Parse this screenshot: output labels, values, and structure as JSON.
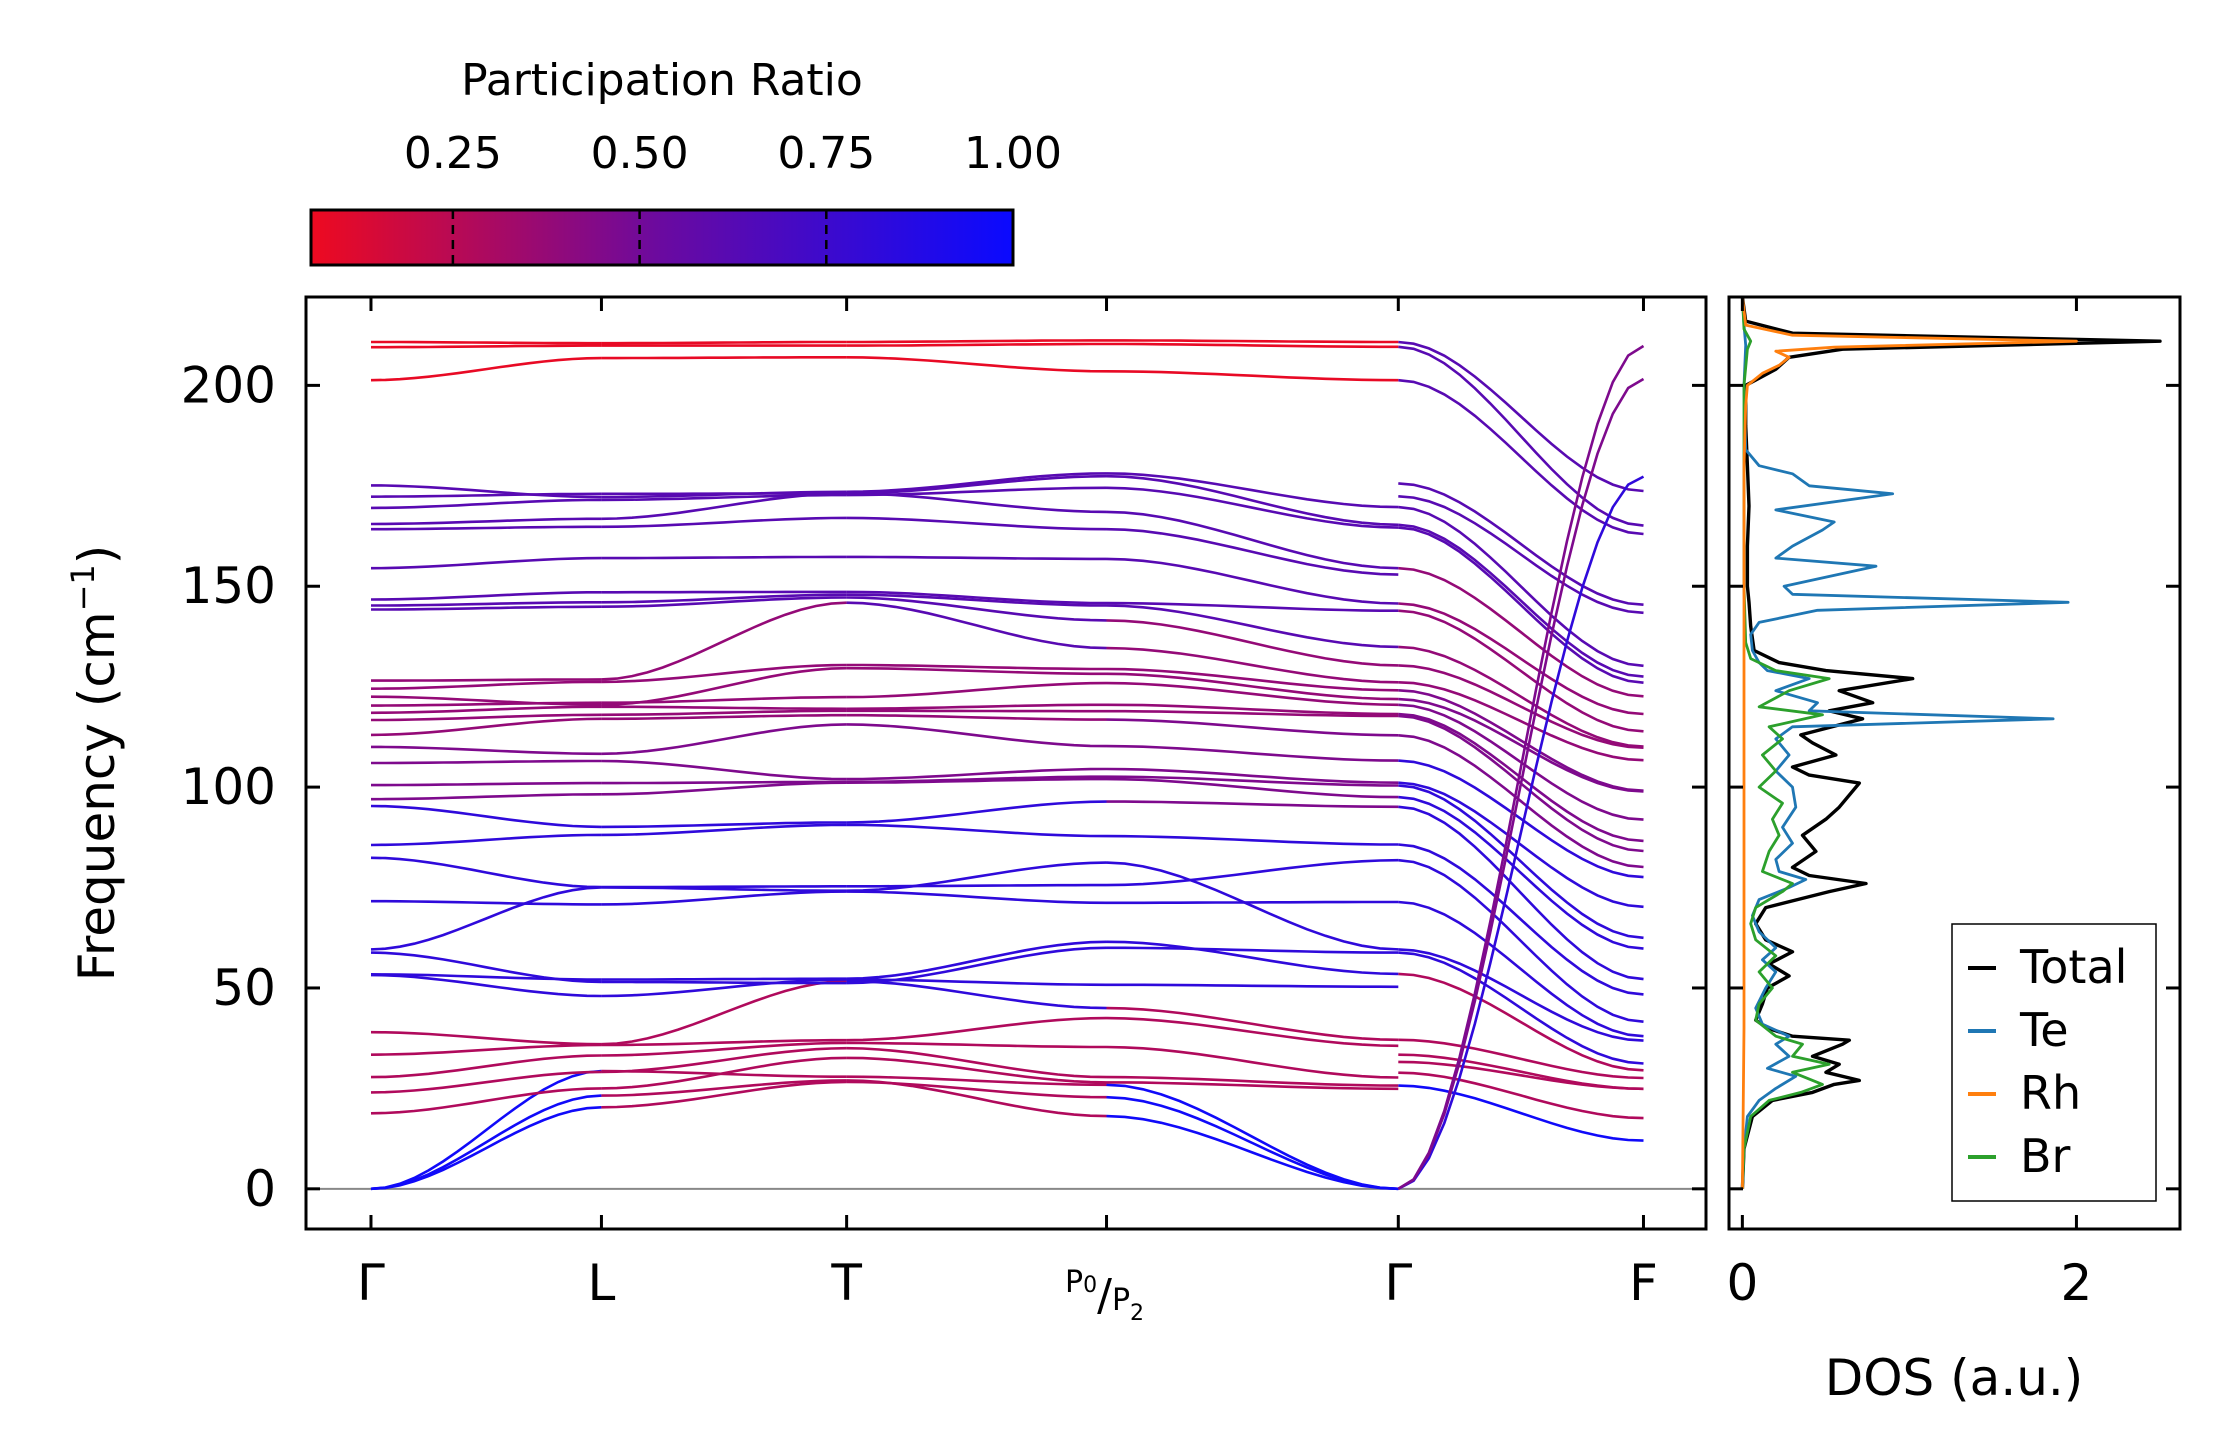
{
  "colorbar": {
    "title": "Participation Ratio",
    "ticks": [
      "0.25",
      "0.50",
      "0.75",
      "1.00"
    ],
    "tick_values": [
      0.25,
      0.5,
      0.75,
      1.0
    ],
    "range": [
      0.06,
      1.0
    ],
    "color_low": "#ee0a20",
    "color_mid": "#6a0aa0",
    "color_high": "#0a0aff"
  },
  "chart_data": [
    {
      "type": "line",
      "name": "phonon-band-structure",
      "ylabel": "Frequency (cm",
      "ylabel_sup": "−1",
      "ylabel_end": ")",
      "ylim": [
        -10,
        222
      ],
      "yticks": [
        0,
        50,
        100,
        150,
        200
      ],
      "ytick_labels": [
        "0",
        "50",
        "100",
        "150",
        "200"
      ],
      "xlim": [
        -0.265,
        5.445
      ],
      "path_points": [
        0,
        0.94,
        1.94,
        3.0,
        4.19,
        5.19
      ],
      "path_labels": [
        "Γ",
        "L",
        "T",
        "P",
        "Γ",
        "F"
      ],
      "path_label_special": {
        "main": "P",
        "sub1": "0",
        "sep": "/",
        "main2": "P",
        "sub2": "2"
      },
      "seg_starts": [
        [
          0,
          0,
          0,
          18.8,
          24,
          27.8,
          33.4,
          39,
          53.2,
          53.4,
          58.8,
          59.6,
          71.6,
          82.4,
          85.6,
          95.3,
          97,
          100.5,
          106,
          110,
          113,
          116.7,
          118.5,
          120.3,
          122.5,
          124.5,
          126.5,
          144.2,
          145.2,
          146.7,
          154.5,
          164.2,
          165.5,
          169.5,
          172.3,
          175.1,
          201.3,
          209.5,
          210.8
        ],
        [
          23.2,
          20.3,
          29.3,
          25,
          29.1,
          33.2,
          35.8,
          36,
          48,
          52.1,
          51.5,
          75,
          70.8,
          75.1,
          88.1,
          90.1,
          98.2,
          101,
          106.5,
          108.3,
          117,
          118,
          120,
          121,
          120.5,
          126.2,
          126.8,
          144.9,
          146,
          148.5,
          157,
          164.8,
          166.8,
          171.5,
          173,
          172.2,
          206.8,
          209.9,
          210.5
        ],
        [
          27,
          26.6,
          27.9,
          32.6,
          35,
          36.3,
          37,
          51.7,
          52.1,
          52.3,
          51.2,
          74.2,
          74,
          75.3,
          90.6,
          91.2,
          101.1,
          101.3,
          102,
          115.6,
          117.9,
          119,
          119.5,
          122.4,
          129.6,
          130.4,
          145.9,
          147.2,
          147.9,
          148.6,
          157.3,
          167,
          173.1,
          172.7,
          173.1,
          173.5,
          207,
          209.9,
          210.8
        ],
        [
          18.1,
          22.8,
          25.9,
          26.5,
          27.8,
          35.3,
          42.5,
          45,
          50.8,
          61.5,
          60,
          81.2,
          71.2,
          75.6,
          87.8,
          96.4,
          102,
          102.6,
          104.5,
          110.2,
          116.8,
          118.9,
          120.5,
          125.9,
          128.2,
          129.4,
          134.6,
          141.5,
          145.2,
          145.8,
          156.8,
          164.2,
          168.5,
          174.5,
          177.4,
          178.1,
          203.5,
          210.3,
          211.2
        ],
        [
          0,
          0,
          0,
          24.9,
          25.7,
          27.7,
          35.6,
          37.1,
          50.3,
          53.5,
          58.8,
          59.6,
          71.4,
          81.8,
          85.7,
          95.1,
          97.5,
          100.4,
          101.1,
          106.6,
          112.9,
          117.7,
          118.2,
          120.5,
          121.9,
          124.1,
          126.1,
          130.3,
          134.9,
          143.9,
          145.7,
          152.9,
          154.5,
          164.6,
          165.3,
          169.7,
          201.3,
          209.6,
          210.8
        ],
        [
          12,
          17.6,
          24.9,
          24.9,
          27.6,
          29.5,
          31.2,
          36.9,
          38,
          41.6,
          48.4,
          52.2,
          59.8,
          62.5,
          70.2,
          77.6,
          80.1,
          84.1,
          86.6,
          91.9,
          98.9,
          99.1,
          106.7,
          109.8,
          110.1,
          113.9,
          118.2,
          122.6,
          126,
          127.5,
          130.2,
          143.4,
          145.4,
          163,
          165.1,
          173.7,
          177.3,
          201.6,
          209.8
        ]
      ],
      "breaks": [
        {
          "at": 4.19,
          "right": [
            25.7,
            28.9,
            31.6,
            33.4,
            37.1,
            53.5,
            58.8,
            59.6,
            71.4,
            81.8,
            85.7,
            95.1,
            97.5,
            100.4,
            101.1,
            106.6,
            112.9,
            117.7,
            118.2,
            120.5,
            121.9,
            124.1,
            126.1,
            130.3,
            134.9,
            143.9,
            145.7,
            154.5,
            164.6,
            165.3,
            169.7,
            172.4,
            175.6,
            201.3,
            209.6,
            210.8,
            0,
            0,
            0
          ]
        }
      ]
    },
    {
      "type": "line",
      "name": "density-of-states",
      "xlabel": "DOS (a.u.)",
      "xlim": [
        -0.08,
        2.62
      ],
      "ylim": [
        -10,
        222
      ],
      "xticks": [
        0,
        2
      ],
      "xtick_labels": [
        "0",
        "2"
      ],
      "legend_position": "lower right",
      "series": [
        {
          "name": "Total",
          "color": "#000000",
          "points": [
            [
              0,
              0
            ],
            [
              0.01,
              10
            ],
            [
              0.06,
              18
            ],
            [
              0.18,
              22
            ],
            [
              0.42,
              24
            ],
            [
              0.55,
              26
            ],
            [
              0.7,
              27
            ],
            [
              0.5,
              29
            ],
            [
              0.58,
              31
            ],
            [
              0.42,
              33
            ],
            [
              0.6,
              36
            ],
            [
              0.64,
              37
            ],
            [
              0.3,
              38
            ],
            [
              0.15,
              40
            ],
            [
              0.08,
              42
            ],
            [
              0.12,
              46
            ],
            [
              0.15,
              50
            ],
            [
              0.28,
              53
            ],
            [
              0.16,
              56
            ],
            [
              0.3,
              59
            ],
            [
              0.14,
              62
            ],
            [
              0.08,
              66
            ],
            [
              0.14,
              70
            ],
            [
              0.52,
              74
            ],
            [
              0.74,
              76
            ],
            [
              0.4,
              78
            ],
            [
              0.3,
              80
            ],
            [
              0.44,
              84
            ],
            [
              0.36,
              88
            ],
            [
              0.5,
              92
            ],
            [
              0.58,
              95
            ],
            [
              0.7,
              101
            ],
            [
              0.4,
              103
            ],
            [
              0.3,
              105
            ],
            [
              0.56,
              108
            ],
            [
              0.42,
              111
            ],
            [
              0.35,
              113
            ],
            [
              0.72,
              117
            ],
            [
              0.52,
              119
            ],
            [
              0.78,
              121
            ],
            [
              0.58,
              124
            ],
            [
              1.02,
              127
            ],
            [
              0.5,
              129
            ],
            [
              0.22,
              131
            ],
            [
              0.07,
              134
            ],
            [
              0.05,
              140
            ],
            [
              0.04,
              146
            ],
            [
              0.03,
              150
            ],
            [
              0.03,
              160
            ],
            [
              0.04,
              170
            ],
            [
              0.03,
              180
            ],
            [
              0.02,
              190
            ],
            [
              0.02,
              200
            ],
            [
              0.2,
              204
            ],
            [
              0.28,
              207
            ],
            [
              0.6,
              209
            ],
            [
              2.5,
              211
            ],
            [
              0.3,
              213
            ],
            [
              0.02,
              216
            ],
            [
              0,
              222
            ]
          ]
        },
        {
          "name": "Te",
          "color": "#1f77b4",
          "points": [
            [
              0,
              0
            ],
            [
              0.01,
              10
            ],
            [
              0.03,
              18
            ],
            [
              0.1,
              22
            ],
            [
              0.2,
              25
            ],
            [
              0.32,
              28
            ],
            [
              0.15,
              30
            ],
            [
              0.28,
              33
            ],
            [
              0.2,
              36
            ],
            [
              0.28,
              38
            ],
            [
              0.12,
              41
            ],
            [
              0.08,
              45
            ],
            [
              0.14,
              50
            ],
            [
              0.2,
              54
            ],
            [
              0.12,
              57
            ],
            [
              0.2,
              60
            ],
            [
              0.1,
              64
            ],
            [
              0.06,
              68
            ],
            [
              0.1,
              72
            ],
            [
              0.28,
              75
            ],
            [
              0.38,
              77
            ],
            [
              0.22,
              79
            ],
            [
              0.2,
              82
            ],
            [
              0.3,
              86
            ],
            [
              0.24,
              90
            ],
            [
              0.32,
              95
            ],
            [
              0.3,
              100
            ],
            [
              0.2,
              104
            ],
            [
              0.28,
              108
            ],
            [
              0.2,
              112
            ],
            [
              0.3,
              115
            ],
            [
              1.86,
              117
            ],
            [
              0.4,
              119
            ],
            [
              0.45,
              121
            ],
            [
              0.2,
              124
            ],
            [
              0.4,
              127
            ],
            [
              0.15,
              129
            ],
            [
              0.1,
              131
            ],
            [
              0.06,
              134
            ],
            [
              0.05,
              138
            ],
            [
              0.1,
              141
            ],
            [
              0.45,
              144
            ],
            [
              1.95,
              146
            ],
            [
              0.3,
              148
            ],
            [
              0.25,
              150
            ],
            [
              0.8,
              155
            ],
            [
              0.2,
              157
            ],
            [
              0.3,
              160
            ],
            [
              0.48,
              164
            ],
            [
              0.55,
              166
            ],
            [
              0.2,
              169
            ],
            [
              0.9,
              173
            ],
            [
              0.4,
              175
            ],
            [
              0.3,
              178
            ],
            [
              0.1,
              180
            ],
            [
              0.02,
              184
            ],
            [
              0.01,
              200
            ],
            [
              0.02,
              210
            ],
            [
              0.01,
              215
            ],
            [
              0,
              222
            ]
          ]
        },
        {
          "name": "Rh",
          "color": "#ff7f0e",
          "points": [
            [
              0,
              0
            ],
            [
              0.005,
              20
            ],
            [
              0.01,
              40
            ],
            [
              0.01,
              60
            ],
            [
              0.01,
              80
            ],
            [
              0.01,
              100
            ],
            [
              0.01,
              120
            ],
            [
              0.01,
              140
            ],
            [
              0.01,
              160
            ],
            [
              0.01,
              180
            ],
            [
              0.02,
              195
            ],
            [
              0.03,
              200
            ],
            [
              0.12,
              203
            ],
            [
              0.22,
              205
            ],
            [
              0.28,
              207
            ],
            [
              0.2,
              208.5
            ],
            [
              0.55,
              209.5
            ],
            [
              2.0,
              211
            ],
            [
              0.3,
              212.5
            ],
            [
              0.02,
              215
            ],
            [
              0,
              222
            ]
          ]
        },
        {
          "name": "Br",
          "color": "#2ca02c",
          "points": [
            [
              0,
              0
            ],
            [
              0.01,
              10
            ],
            [
              0.05,
              18
            ],
            [
              0.16,
              22
            ],
            [
              0.35,
              24
            ],
            [
              0.48,
              26
            ],
            [
              0.3,
              29
            ],
            [
              0.52,
              31
            ],
            [
              0.3,
              33
            ],
            [
              0.36,
              36
            ],
            [
              0.2,
              38
            ],
            [
              0.08,
              42
            ],
            [
              0.1,
              46
            ],
            [
              0.18,
              50
            ],
            [
              0.1,
              54
            ],
            [
              0.2,
              58
            ],
            [
              0.08,
              62
            ],
            [
              0.05,
              66
            ],
            [
              0.08,
              70
            ],
            [
              0.24,
              74
            ],
            [
              0.3,
              76
            ],
            [
              0.12,
              79
            ],
            [
              0.16,
              84
            ],
            [
              0.22,
              88
            ],
            [
              0.18,
              92
            ],
            [
              0.24,
              96
            ],
            [
              0.1,
              100
            ],
            [
              0.2,
              104
            ],
            [
              0.12,
              108
            ],
            [
              0.24,
              112
            ],
            [
              0.16,
              115
            ],
            [
              0.48,
              118
            ],
            [
              0.1,
              120
            ],
            [
              0.28,
              124
            ],
            [
              0.52,
              127
            ],
            [
              0.2,
              129
            ],
            [
              0.05,
              132
            ],
            [
              0.02,
              136
            ],
            [
              0.01,
              150
            ],
            [
              0.01,
              180
            ],
            [
              0.01,
              200
            ],
            [
              0.03,
              209
            ],
            [
              0.05,
              211
            ],
            [
              0.01,
              214
            ],
            [
              0,
              222
            ]
          ]
        }
      ]
    }
  ]
}
